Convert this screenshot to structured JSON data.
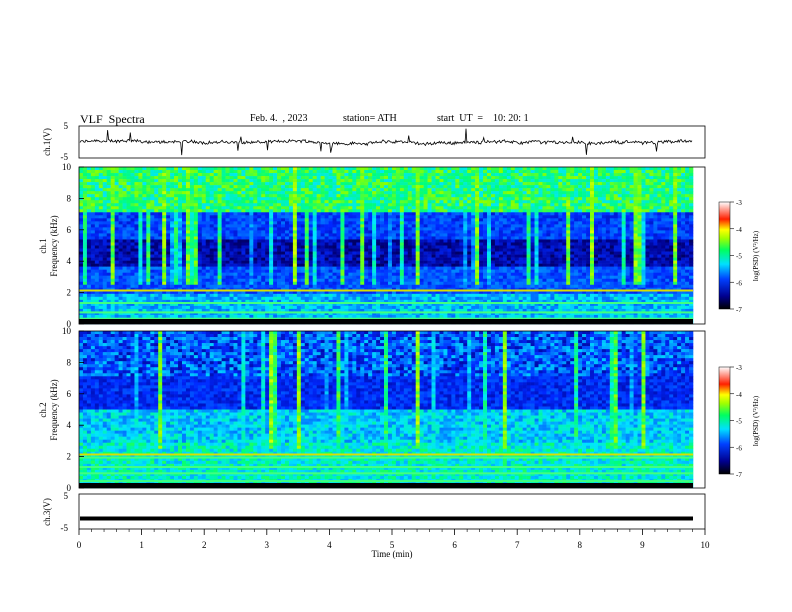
{
  "header": {
    "title": "VLF  Spectra",
    "date": "Feb. 4.  , 2023",
    "station": "station= ATH",
    "start": "start  UT  =    10: 20: 1"
  },
  "chart_data": [
    {
      "type": "line",
      "ylabel": "ch.1(V)",
      "ylim": [
        -5,
        5
      ],
      "yticks": [
        "5",
        "-5"
      ],
      "baseline": 0,
      "description_values": "noisy signal around 0 V"
    },
    {
      "type": "heatmap",
      "ylabel_line1": "ch.1",
      "ylabel_line2": "Frequency  (kHz)",
      "ylim": [
        0,
        10
      ],
      "yticks": [
        "0",
        "2",
        "4",
        "6",
        "8",
        "10"
      ],
      "colorbar": {
        "label": "log(PSD) (V²/Hz)",
        "range": [
          -7,
          -3
        ],
        "ticks": [
          "-3",
          "-4",
          "-5",
          "-6",
          "-7"
        ]
      }
    },
    {
      "type": "heatmap",
      "ylabel_line1": "ch.2",
      "ylabel_line2": "Frequency  (kHz)",
      "ylim": [
        0,
        10
      ],
      "yticks": [
        "0",
        "2",
        "4",
        "6",
        "8",
        "10"
      ],
      "colorbar": {
        "label": "log(PSD) (V²/Hz)",
        "range": [
          -7,
          -3
        ],
        "ticks": [
          "-3",
          "-4",
          "-5",
          "-6",
          "-7"
        ]
      }
    },
    {
      "type": "line",
      "ylabel": "ch.3(V)",
      "ylim": [
        -5,
        5
      ],
      "yticks": [
        "5",
        "-5"
      ],
      "constant_value": -2
    }
  ],
  "xaxis": {
    "label": "Time  (min)",
    "range": [
      0,
      10
    ],
    "ticks": [
      "0",
      "1",
      "2",
      "3",
      "4",
      "5",
      "6",
      "7",
      "8",
      "9",
      "10"
    ]
  },
  "colormap": [
    "#000000",
    "#00007f",
    "#0000ff",
    "#0080ff",
    "#00ffff",
    "#00ff80",
    "#80ff00",
    "#ffff00",
    "#ff8000",
    "#ff0000",
    "#ffffff"
  ]
}
